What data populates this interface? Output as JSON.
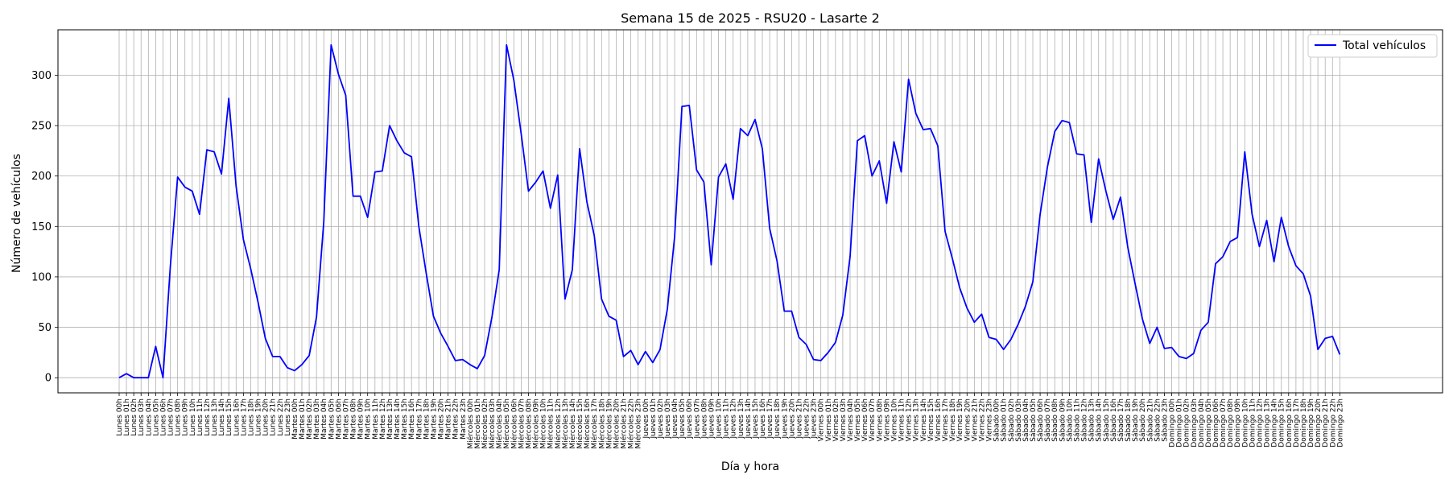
{
  "chart_data": {
    "type": "line",
    "title": "Semana 15 de 2025 - RSU20 - Lasarte 2",
    "xlabel": "Día y hora",
    "ylabel": "Número de vehículos",
    "ylim": [
      -15,
      345
    ],
    "yticks": [
      0,
      50,
      100,
      150,
      200,
      250,
      300
    ],
    "grid": true,
    "legend": {
      "position": "top-right",
      "entries": [
        "Total vehículos"
      ]
    },
    "days": [
      "Lunes",
      "Martes",
      "Miércoles",
      "Jueves",
      "Viernes",
      "Sábado",
      "Domingo"
    ],
    "series": [
      {
        "name": "Total vehículos",
        "color": "#0000ff",
        "values": [
          0,
          4,
          0,
          0,
          0,
          31,
          0,
          110,
          199,
          189,
          185,
          162,
          226,
          224,
          202,
          277,
          190,
          137,
          108,
          75,
          39,
          21,
          21,
          10,
          7,
          13,
          22,
          60,
          155,
          330,
          301,
          280,
          180,
          180,
          159,
          204,
          205,
          250,
          235,
          223,
          219,
          150,
          104,
          61,
          44,
          31,
          17,
          18,
          13,
          9,
          22,
          60,
          107,
          330,
          295,
          242,
          185,
          194,
          205,
          168,
          201,
          78,
          107,
          227,
          174,
          141,
          78,
          61,
          57,
          21,
          27,
          13,
          26,
          15,
          28,
          68,
          140,
          269,
          270,
          206,
          194,
          112,
          199,
          212,
          177,
          247,
          240,
          256,
          227,
          148,
          116,
          66,
          66,
          40,
          33,
          18,
          17,
          25,
          35,
          62,
          120,
          235,
          240,
          200,
          215,
          173,
          234,
          204,
          296,
          262,
          246,
          247,
          230,
          145,
          118,
          89,
          69,
          55,
          63,
          40,
          38,
          28,
          38,
          53,
          71,
          95,
          162,
          209,
          244,
          255,
          253,
          222,
          221,
          154,
          217,
          185,
          157,
          179,
          129,
          93,
          58,
          34,
          50,
          29,
          30,
          21,
          19,
          24,
          47,
          55,
          113,
          120,
          135,
          139,
          224,
          162,
          130,
          156,
          115,
          159,
          130,
          111,
          103,
          81,
          28,
          39,
          41,
          23
        ]
      }
    ]
  }
}
